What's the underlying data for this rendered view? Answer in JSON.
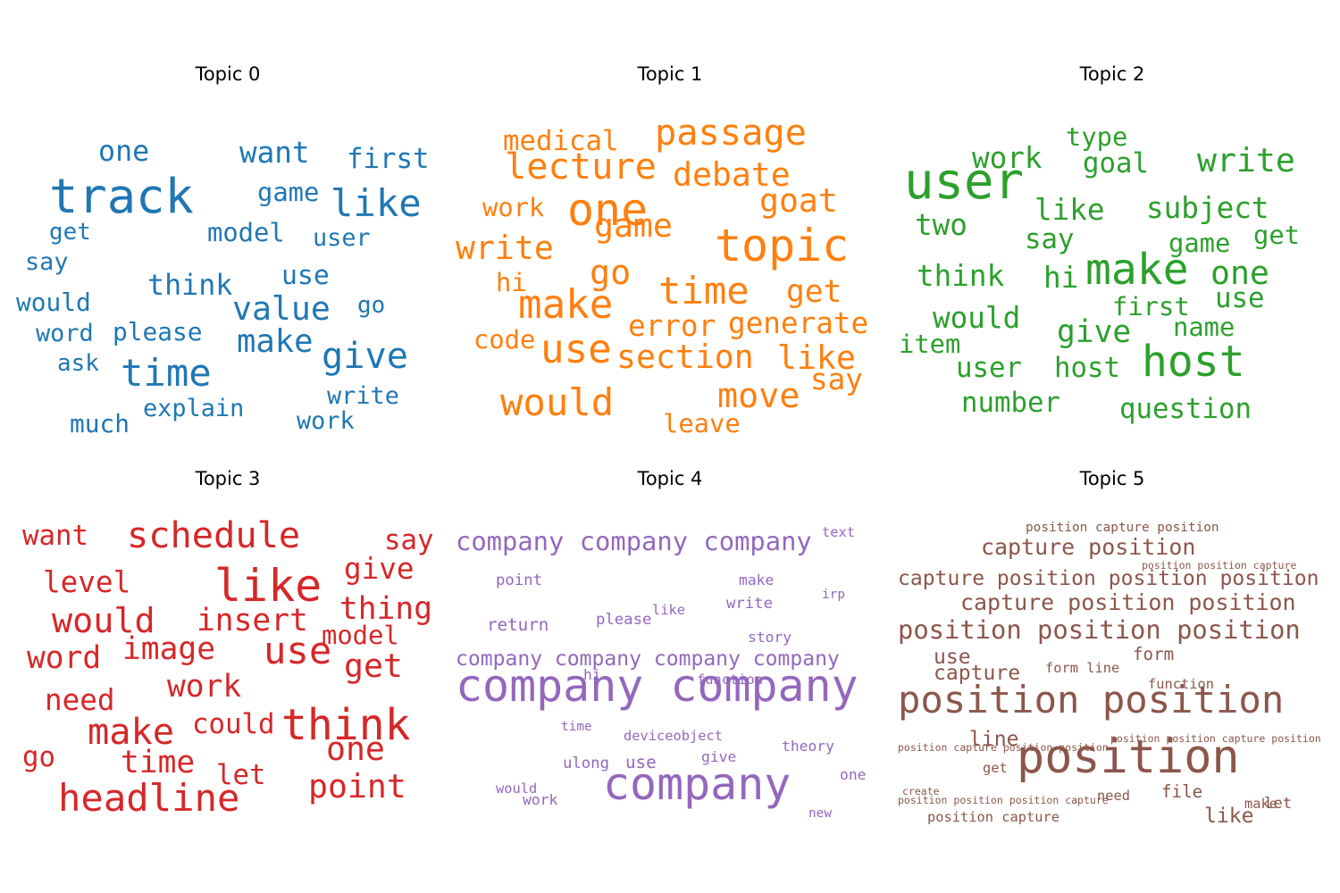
{
  "chart_data": [
    {
      "type": "wordcloud",
      "title": "Topic 0",
      "color": "#1f77b4",
      "words": [
        {
          "text": "track",
          "weight": 56
        },
        {
          "text": "time",
          "weight": 44
        },
        {
          "text": "like",
          "weight": 44
        },
        {
          "text": "give",
          "weight": 42
        },
        {
          "text": "value",
          "weight": 38
        },
        {
          "text": "make",
          "weight": 37
        },
        {
          "text": "want",
          "weight": 34
        },
        {
          "text": "one",
          "weight": 33
        },
        {
          "text": "think",
          "weight": 33
        },
        {
          "text": "first",
          "weight": 32
        },
        {
          "text": "use",
          "weight": 31
        },
        {
          "text": "model",
          "weight": 30
        },
        {
          "text": "game",
          "weight": 30
        },
        {
          "text": "would",
          "weight": 29
        },
        {
          "text": "please",
          "weight": 29
        },
        {
          "text": "much",
          "weight": 29
        },
        {
          "text": "say",
          "weight": 28
        },
        {
          "text": "user",
          "weight": 28
        },
        {
          "text": "word",
          "weight": 28
        },
        {
          "text": "write",
          "weight": 28
        },
        {
          "text": "explain",
          "weight": 28
        },
        {
          "text": "work",
          "weight": 28
        },
        {
          "text": "get",
          "weight": 27
        },
        {
          "text": "ask",
          "weight": 27
        },
        {
          "text": "go",
          "weight": 27
        }
      ]
    },
    {
      "type": "wordcloud",
      "title": "Topic 1",
      "color": "#ff7f0e",
      "words": [
        {
          "text": "topic",
          "weight": 52
        },
        {
          "text": "one",
          "weight": 52
        },
        {
          "text": "make",
          "weight": 46
        },
        {
          "text": "use",
          "weight": 46
        },
        {
          "text": "would",
          "weight": 44
        },
        {
          "text": "time",
          "weight": 44
        },
        {
          "text": "passage",
          "weight": 42
        },
        {
          "text": "lecture",
          "weight": 42
        },
        {
          "text": "go",
          "weight": 40
        },
        {
          "text": "move",
          "weight": 40
        },
        {
          "text": "debate",
          "weight": 38
        },
        {
          "text": "goat",
          "weight": 38
        },
        {
          "text": "game",
          "weight": 38
        },
        {
          "text": "write",
          "weight": 38
        },
        {
          "text": "section",
          "weight": 38
        },
        {
          "text": "like",
          "weight": 38
        },
        {
          "text": "get",
          "weight": 36
        },
        {
          "text": "error",
          "weight": 34
        },
        {
          "text": "generate",
          "weight": 34
        },
        {
          "text": "say",
          "weight": 34
        },
        {
          "text": "medical",
          "weight": 32
        },
        {
          "text": "work",
          "weight": 30
        },
        {
          "text": "hi",
          "weight": 30
        },
        {
          "text": "code",
          "weight": 30
        },
        {
          "text": "leave",
          "weight": 30
        }
      ]
    },
    {
      "type": "wordcloud",
      "title": "Topic 2",
      "color": "#2ca02c",
      "words": [
        {
          "text": "user",
          "weight": 58
        },
        {
          "text": "make",
          "weight": 50
        },
        {
          "text": "host",
          "weight": 50
        },
        {
          "text": "write",
          "weight": 38
        },
        {
          "text": "one",
          "weight": 38
        },
        {
          "text": "give",
          "weight": 36
        },
        {
          "text": "like",
          "weight": 34
        },
        {
          "text": "subject",
          "weight": 34
        },
        {
          "text": "hi",
          "weight": 34
        },
        {
          "text": "work",
          "weight": 34
        },
        {
          "text": "two",
          "weight": 34
        },
        {
          "text": "think",
          "weight": 34
        },
        {
          "text": "would",
          "weight": 34
        },
        {
          "text": "goal",
          "weight": 32
        },
        {
          "text": "say",
          "weight": 32
        },
        {
          "text": "question",
          "weight": 32
        },
        {
          "text": "host",
          "weight": 32
        },
        {
          "text": "number",
          "weight": 32
        },
        {
          "text": "use",
          "weight": 32
        },
        {
          "text": "user",
          "weight": 32
        },
        {
          "text": "type",
          "weight": 30
        },
        {
          "text": "game",
          "weight": 30
        },
        {
          "text": "get",
          "weight": 30
        },
        {
          "text": "first",
          "weight": 30
        },
        {
          "text": "name",
          "weight": 30
        },
        {
          "text": "item",
          "weight": 30
        }
      ]
    },
    {
      "type": "wordcloud",
      "title": "Topic 3",
      "color": "#d62728",
      "words": [
        {
          "text": "like",
          "weight": 52
        },
        {
          "text": "think",
          "weight": 50
        },
        {
          "text": "headline",
          "weight": 44
        },
        {
          "text": "use",
          "weight": 44
        },
        {
          "text": "schedule",
          "weight": 42
        },
        {
          "text": "make",
          "weight": 42
        },
        {
          "text": "would",
          "weight": 40
        },
        {
          "text": "point",
          "weight": 38
        },
        {
          "text": "one",
          "weight": 38
        },
        {
          "text": "get",
          "weight": 38
        },
        {
          "text": "insert",
          "weight": 36
        },
        {
          "text": "image",
          "weight": 36
        },
        {
          "text": "word",
          "weight": 36
        },
        {
          "text": "thing",
          "weight": 36
        },
        {
          "text": "work",
          "weight": 36
        },
        {
          "text": "time",
          "weight": 36
        },
        {
          "text": "level",
          "weight": 34
        },
        {
          "text": "need",
          "weight": 34
        },
        {
          "text": "give",
          "weight": 34
        },
        {
          "text": "want",
          "weight": 32
        },
        {
          "text": "say",
          "weight": 32
        },
        {
          "text": "could",
          "weight": 32
        },
        {
          "text": "let",
          "weight": 32
        },
        {
          "text": "go",
          "weight": 32
        },
        {
          "text": "model",
          "weight": 30
        }
      ]
    },
    {
      "type": "wordcloud",
      "title": "Topic 4",
      "color": "#9467bd",
      "words": [
        {
          "text": "company company",
          "weight": 52
        },
        {
          "text": "company",
          "weight": 52
        },
        {
          "text": "company company company",
          "weight": 30
        },
        {
          "text": "company company company company",
          "weight": 24
        },
        {
          "text": "return",
          "weight": 20
        },
        {
          "text": "use",
          "weight": 20
        },
        {
          "text": "ulong",
          "weight": 18
        },
        {
          "text": "please",
          "weight": 18
        },
        {
          "text": "point",
          "weight": 18
        },
        {
          "text": "write",
          "weight": 18
        },
        {
          "text": "make",
          "weight": 17
        },
        {
          "text": "work",
          "weight": 17
        },
        {
          "text": "give",
          "weight": 17
        },
        {
          "text": "theory",
          "weight": 17
        },
        {
          "text": "story",
          "weight": 17
        },
        {
          "text": "hi",
          "weight": 17
        },
        {
          "text": "one",
          "weight": 17
        },
        {
          "text": "would",
          "weight": 16
        },
        {
          "text": "function",
          "weight": 16
        },
        {
          "text": "deviceobject",
          "weight": 16
        },
        {
          "text": "like",
          "weight": 16
        },
        {
          "text": "text",
          "weight": 16
        },
        {
          "text": "irp",
          "weight": 15
        },
        {
          "text": "time",
          "weight": 15
        },
        {
          "text": "new",
          "weight": 15
        }
      ]
    },
    {
      "type": "wordcloud",
      "title": "Topic 5",
      "color": "#8c564b",
      "words": [
        {
          "text": "position",
          "weight": 54
        },
        {
          "text": "position position",
          "weight": 44
        },
        {
          "text": "position position position",
          "weight": 30
        },
        {
          "text": "capture position position",
          "weight": 26
        },
        {
          "text": "capture position position position",
          "weight": 24
        },
        {
          "text": "capture position",
          "weight": 26
        },
        {
          "text": "like",
          "weight": 24
        },
        {
          "text": "line",
          "weight": 24
        },
        {
          "text": "use",
          "weight": 24
        },
        {
          "text": "capture",
          "weight": 24
        },
        {
          "text": "file",
          "weight": 20
        },
        {
          "text": "form",
          "weight": 20
        },
        {
          "text": "let",
          "weight": 18
        },
        {
          "text": "need",
          "weight": 16
        },
        {
          "text": "get",
          "weight": 16
        },
        {
          "text": "make",
          "weight": 16
        },
        {
          "text": "position capture",
          "weight": 16
        },
        {
          "text": "function",
          "weight": 16
        },
        {
          "text": "form line",
          "weight": 16
        },
        {
          "text": "position capture position",
          "weight": 15
        },
        {
          "text": "position capture position position",
          "weight": 12
        },
        {
          "text": "position position capture position",
          "weight": 12
        },
        {
          "text": "position position position capture",
          "weight": 12
        },
        {
          "text": "position position capture",
          "weight": 12
        },
        {
          "text": "create",
          "weight": 12
        }
      ]
    }
  ]
}
